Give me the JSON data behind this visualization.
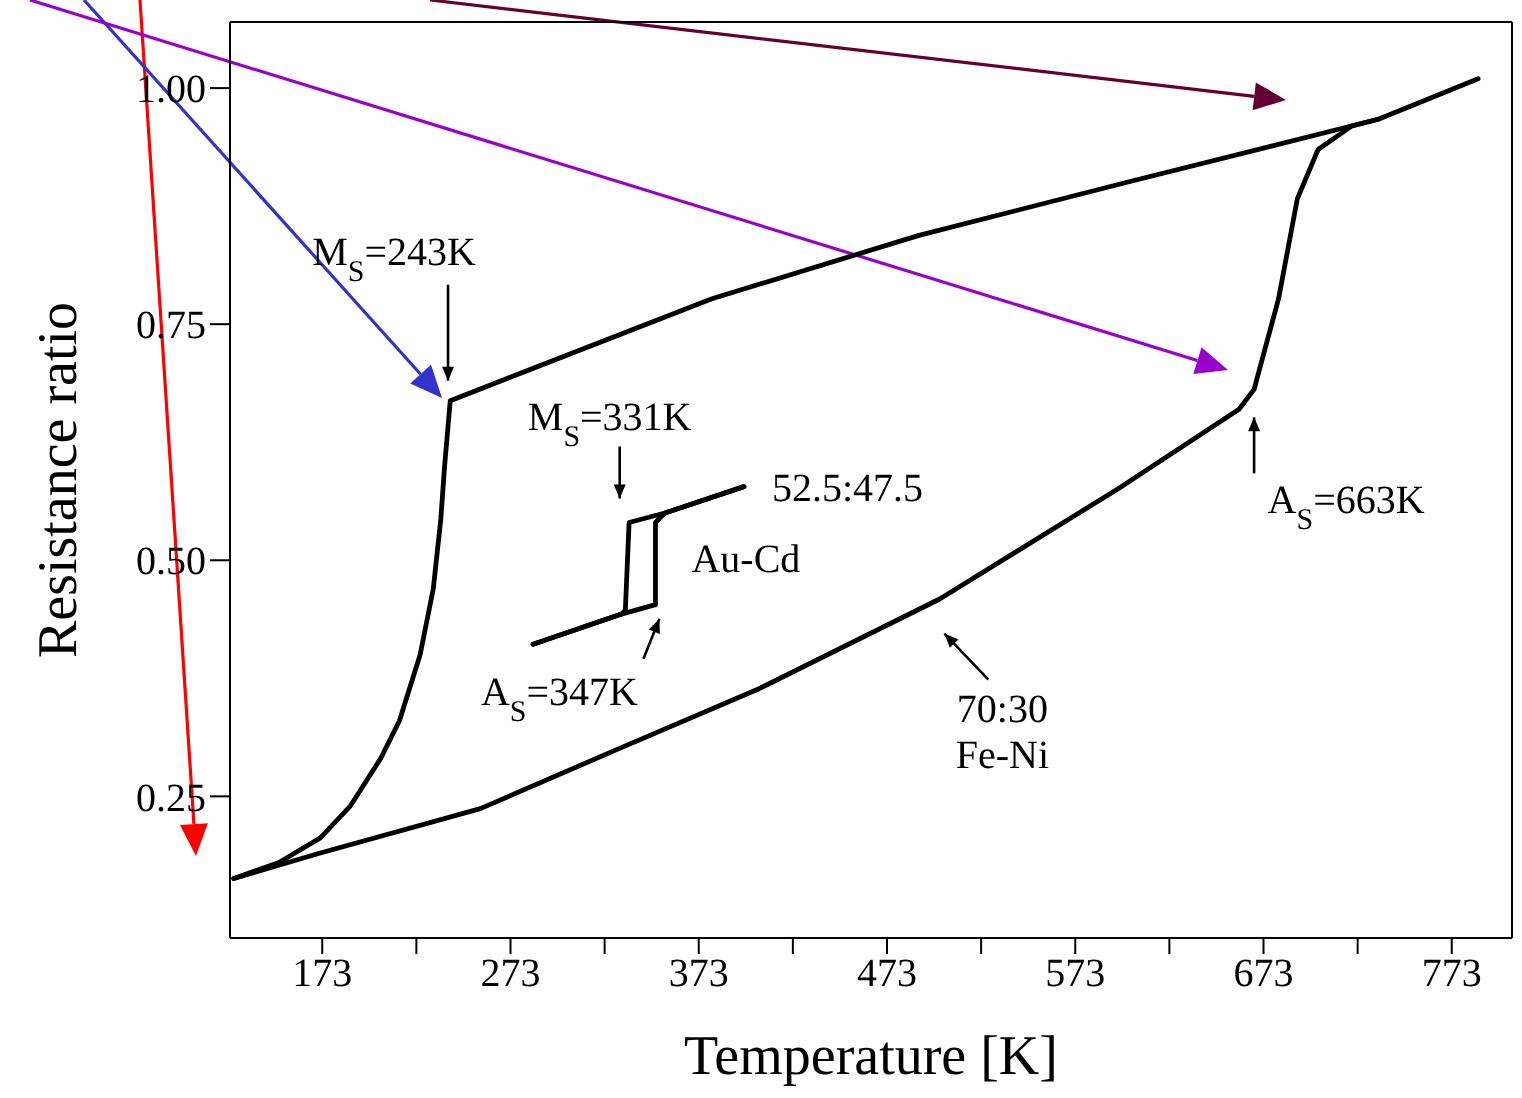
{
  "chart_data": {
    "type": "line",
    "xlabel": "Temperature [K]",
    "ylabel": "Resistance ratio",
    "xlim": [
      124,
      805
    ],
    "ylim": [
      0.1,
      1.07
    ],
    "xticks": [
      173,
      {
        "value": 223,
        "label": null
      },
      273,
      {
        "value": 323,
        "label": null
      },
      373,
      {
        "value": 423,
        "label": null
      },
      473,
      {
        "value": 523,
        "label": null
      },
      573,
      {
        "value": 623,
        "label": null
      },
      673,
      {
        "value": 723,
        "label": null
      },
      773
    ],
    "yticks": [
      {
        "value": 0.25,
        "label": "0.25"
      },
      {
        "value": 0.5,
        "label": "0.50"
      },
      {
        "value": 0.75,
        "label": "0.75"
      },
      {
        "value": 1,
        "label": "1.00"
      }
    ],
    "marker": "none",
    "line_style": "solid",
    "series": [
      {
        "color": "#000000",
        "x": [
          126,
          172,
          257,
          330,
          405,
          501,
          596,
          660,
          668,
          681,
          691,
          702,
          720,
          734
        ],
        "values": [
          0.163,
          0.19,
          0.237,
          0.3,
          0.364,
          0.459,
          0.576,
          0.66,
          0.681,
          0.777,
          0.883,
          0.935,
          0.96,
          0.967
        ]
      },
      {
        "color": "#000000",
        "x": [
          787,
          734,
          600,
          490,
          380,
          241,
          238,
          236,
          232,
          225,
          214,
          204,
          188,
          172,
          150,
          126
        ],
        "values": [
          1.01,
          0.967,
          0.9,
          0.844,
          0.777,
          0.669,
          0.6,
          0.544,
          0.47,
          0.4,
          0.33,
          0.29,
          0.24,
          0.206,
          0.18,
          0.163
        ]
      },
      {
        "color": "#000000",
        "x": [
          285,
          332,
          350,
          350,
          355,
          397
        ],
        "values": [
          0.411,
          0.443,
          0.453,
          0.54,
          0.55,
          0.578
        ]
      },
      {
        "color": "#000000",
        "x": [
          397,
          355,
          336,
          334,
          332,
          285
        ],
        "values": [
          0.578,
          0.55,
          0.54,
          0.447,
          0.443,
          0.411
        ]
      }
    ],
    "annotations": [
      {
        "text": "M$_{S}$=243K",
        "x": 243,
        "y": 0.669
      },
      {
        "text": "M$_{S}$=331K",
        "x": 331,
        "y": 0.54
      },
      {
        "text": "A$_{S}$=347K",
        "x": 350,
        "y": 0.453
      },
      {
        "text": "A$_{S}$=663K",
        "x": 668,
        "y": 0.681
      },
      {
        "text": "52.5:47.5",
        "x": 397,
        "y": 0.578
      },
      {
        "text": "Au-Cd",
        "x": 350,
        "y": 0.5
      },
      {
        "text": "70:30",
        "x": 495,
        "y": 0.452
      },
      "Fe-Ni"
    ]
  }
}
